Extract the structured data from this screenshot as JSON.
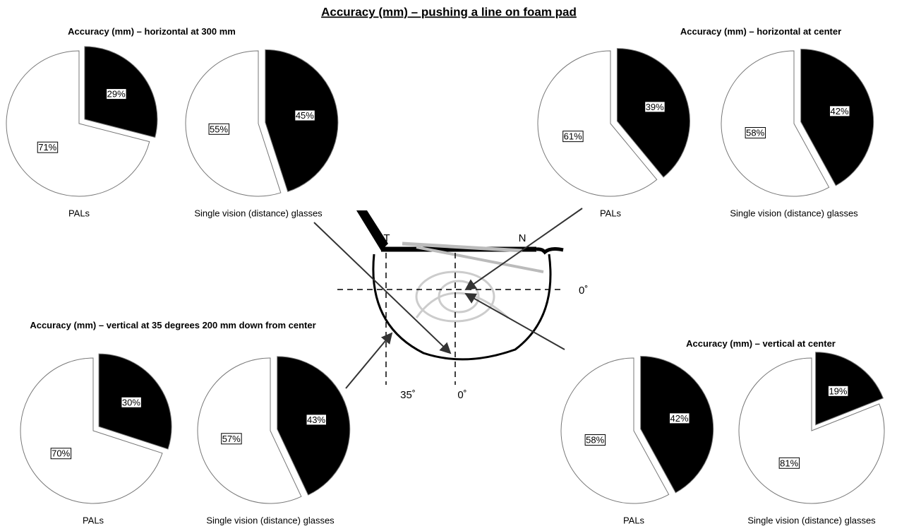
{
  "title": "Accuracy (mm) – pushing a line on foam pad",
  "chart_data": [
    {
      "type": "pie",
      "title": "Accuracy (mm) – horizontal at 300 mm",
      "colors": [
        "#ffffff",
        "#000000"
      ],
      "series": [
        {
          "name": "PALs",
          "values": [
            71,
            29
          ],
          "value_labels": [
            "71%",
            "29%"
          ]
        },
        {
          "name": "Single vision (distance) glasses",
          "values": [
            55,
            45
          ],
          "value_labels": [
            "55%",
            "45%"
          ]
        }
      ]
    },
    {
      "type": "pie",
      "title": "Accuracy (mm) – horizontal at center",
      "colors": [
        "#ffffff",
        "#000000"
      ],
      "series": [
        {
          "name": "PALs",
          "values": [
            61,
            39
          ],
          "value_labels": [
            "61%",
            "39%"
          ]
        },
        {
          "name": "Single vision (distance) glasses",
          "values": [
            58,
            42
          ],
          "value_labels": [
            "58%",
            "42%"
          ]
        }
      ]
    },
    {
      "type": "pie",
      "title": "Accuracy (mm) – vertical at 35 degrees 200 mm down from center",
      "colors": [
        "#ffffff",
        "#000000"
      ],
      "series": [
        {
          "name": "PALs",
          "values": [
            70,
            30
          ],
          "value_labels": [
            "70%",
            "30%"
          ]
        },
        {
          "name": "Single vision (distance) glasses",
          "values": [
            57,
            43
          ],
          "value_labels": [
            "57%",
            "43%"
          ]
        }
      ]
    },
    {
      "type": "pie",
      "title": "Accuracy (mm) – vertical at center",
      "colors": [
        "#ffffff",
        "#000000"
      ],
      "series": [
        {
          "name": "PALs",
          "values": [
            58,
            42
          ],
          "value_labels": [
            "58%",
            "42%"
          ]
        },
        {
          "name": "Single vision (distance) glasses",
          "values": [
            81,
            19
          ],
          "value_labels": [
            "81%",
            "19%"
          ]
        }
      ]
    }
  ],
  "diagram": {
    "labels": [
      "T",
      "N",
      "0˚",
      "35˚",
      "0˚"
    ]
  }
}
